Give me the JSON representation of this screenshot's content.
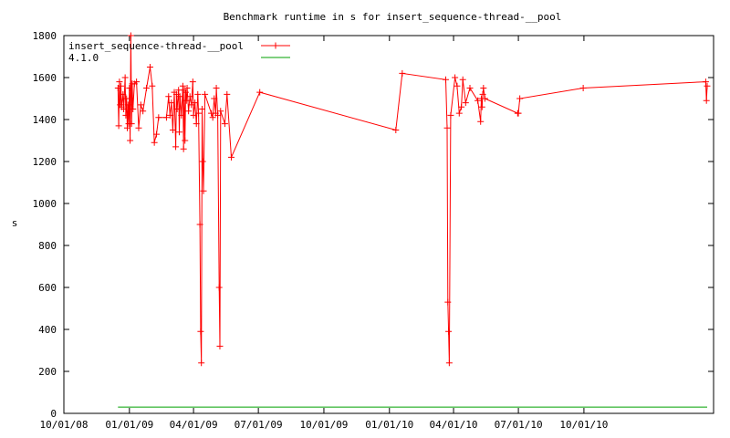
{
  "chart_data": {
    "type": "line",
    "title": "Benchmark runtime in s for insert_sequence-thread-__pool",
    "xlabel": "",
    "ylabel": "s",
    "x_axis": {
      "kind": "date",
      "range": [
        "2008-10-01",
        "2011-04-01"
      ],
      "ticks": [
        "2008-10-01",
        "2009-01-01",
        "2009-04-01",
        "2009-07-01",
        "2009-10-01",
        "2010-01-01",
        "2010-04-01",
        "2010-07-01",
        "2010-10-01"
      ],
      "tick_labels": [
        "10/01/08",
        "01/01/09",
        "04/01/09",
        "07/01/09",
        "10/01/09",
        "01/01/10",
        "04/01/10",
        "07/01/10",
        "10/01/10"
      ]
    },
    "y_axis": {
      "range": [
        0,
        1800
      ],
      "ticks": [
        0,
        200,
        400,
        600,
        800,
        1000,
        1200,
        1400,
        1600,
        1800
      ],
      "tick_labels": [
        "0",
        "200",
        "400",
        "600",
        "800",
        "1000",
        "1200",
        "1400",
        "1600",
        "1800"
      ]
    },
    "grid": false,
    "legend_position": "top-left",
    "series": [
      {
        "name": "insert_sequence-thread-__pool",
        "color": "#ff0000",
        "marker": "plus",
        "points": [
          [
            "2008-12-16",
            1550
          ],
          [
            "2008-12-17",
            1370
          ],
          [
            "2008-12-18",
            1580
          ],
          [
            "2008-12-19",
            1470
          ],
          [
            "2008-12-20",
            1560
          ],
          [
            "2008-12-21",
            1460
          ],
          [
            "2008-12-23",
            1520
          ],
          [
            "2008-12-24",
            1450
          ],
          [
            "2008-12-26",
            1600
          ],
          [
            "2008-12-27",
            1420
          ],
          [
            "2008-12-28",
            1500
          ],
          [
            "2008-12-29",
            1360
          ],
          [
            "2008-12-30",
            1470
          ],
          [
            "2008-12-31",
            1380
          ],
          [
            "2009-01-01",
            1550
          ],
          [
            "2009-01-02",
            1300
          ],
          [
            "2009-01-03",
            1800
          ],
          [
            "2009-01-04",
            1380
          ],
          [
            "2009-01-05",
            1570
          ],
          [
            "2009-01-06",
            1450
          ],
          [
            "2009-01-08",
            1570
          ],
          [
            "2009-01-11",
            1580
          ],
          [
            "2009-01-14",
            1360
          ],
          [
            "2009-01-17",
            1470
          ],
          [
            "2009-01-20",
            1440
          ],
          [
            "2009-01-25",
            1550
          ],
          [
            "2009-01-30",
            1650
          ],
          [
            "2009-02-02",
            1560
          ],
          [
            "2009-02-05",
            1290
          ],
          [
            "2009-02-08",
            1330
          ],
          [
            "2009-02-11",
            1410
          ],
          [
            "2009-02-22",
            1410
          ],
          [
            "2009-02-25",
            1510
          ],
          [
            "2009-02-27",
            1420
          ],
          [
            "2009-03-01",
            1480
          ],
          [
            "2009-03-03",
            1350
          ],
          [
            "2009-03-05",
            1530
          ],
          [
            "2009-03-07",
            1270
          ],
          [
            "2009-03-08",
            1520
          ],
          [
            "2009-03-09",
            1450
          ],
          [
            "2009-03-11",
            1540
          ],
          [
            "2009-03-12",
            1340
          ],
          [
            "2009-03-13",
            1510
          ],
          [
            "2009-03-15",
            1420
          ],
          [
            "2009-03-17",
            1560
          ],
          [
            "2009-03-18",
            1260
          ],
          [
            "2009-03-19",
            1540
          ],
          [
            "2009-03-20",
            1300
          ],
          [
            "2009-03-21",
            1530
          ],
          [
            "2009-03-22",
            1490
          ],
          [
            "2009-03-23",
            1550
          ],
          [
            "2009-03-25",
            1440
          ],
          [
            "2009-03-27",
            1510
          ],
          [
            "2009-03-29",
            1470
          ],
          [
            "2009-03-31",
            1580
          ],
          [
            "2009-04-01",
            1420
          ],
          [
            "2009-04-03",
            1480
          ],
          [
            "2009-04-05",
            1380
          ],
          [
            "2009-04-07",
            1520
          ],
          [
            "2009-04-08",
            1430
          ],
          [
            "2009-04-10",
            900
          ],
          [
            "2009-04-11",
            390
          ],
          [
            "2009-04-12",
            240
          ],
          [
            "2009-04-13",
            1450
          ],
          [
            "2009-04-14",
            1200
          ],
          [
            "2009-04-15",
            1060
          ],
          [
            "2009-04-17",
            1520
          ],
          [
            "2009-04-26",
            1430
          ],
          [
            "2009-04-28",
            1410
          ],
          [
            "2009-04-30",
            1500
          ],
          [
            "2009-05-02",
            1430
          ],
          [
            "2009-05-03",
            1550
          ],
          [
            "2009-05-05",
            1420
          ],
          [
            "2009-05-07",
            600
          ],
          [
            "2009-05-08",
            320
          ],
          [
            "2009-05-09",
            1440
          ],
          [
            "2009-05-15",
            1380
          ],
          [
            "2009-05-18",
            1520
          ],
          [
            "2009-05-24",
            1220
          ],
          [
            "2009-07-03",
            1530
          ],
          [
            "2010-01-10",
            1350
          ],
          [
            "2010-01-19",
            1620
          ],
          [
            "2010-03-21",
            1590
          ],
          [
            "2010-03-23",
            1360
          ],
          [
            "2010-03-24",
            530
          ],
          [
            "2010-03-25",
            390
          ],
          [
            "2010-03-26",
            240
          ],
          [
            "2010-03-28",
            1420
          ],
          [
            "2010-04-03",
            1600
          ],
          [
            "2010-04-06",
            1560
          ],
          [
            "2010-04-09",
            1430
          ],
          [
            "2010-04-12",
            1460
          ],
          [
            "2010-04-14",
            1590
          ],
          [
            "2010-04-18",
            1480
          ],
          [
            "2010-04-24",
            1550
          ],
          [
            "2010-05-05",
            1490
          ],
          [
            "2010-05-09",
            1390
          ],
          [
            "2010-05-10",
            1500
          ],
          [
            "2010-05-11",
            1460
          ],
          [
            "2010-05-12",
            1520
          ],
          [
            "2010-05-13",
            1550
          ],
          [
            "2010-05-15",
            1500
          ],
          [
            "2010-06-30",
            1430
          ],
          [
            "2010-07-01",
            1430
          ],
          [
            "2010-07-03",
            1500
          ],
          [
            "2010-09-30",
            1550
          ],
          [
            "2011-03-21",
            1580
          ],
          [
            "2011-03-22",
            1490
          ],
          [
            "2011-03-23",
            1560
          ]
        ]
      },
      {
        "name": "4.1.0",
        "color": "#00a000",
        "marker": "none",
        "points": [
          [
            "2008-12-16",
            30
          ],
          [
            "2011-03-23",
            30
          ]
        ]
      }
    ]
  }
}
